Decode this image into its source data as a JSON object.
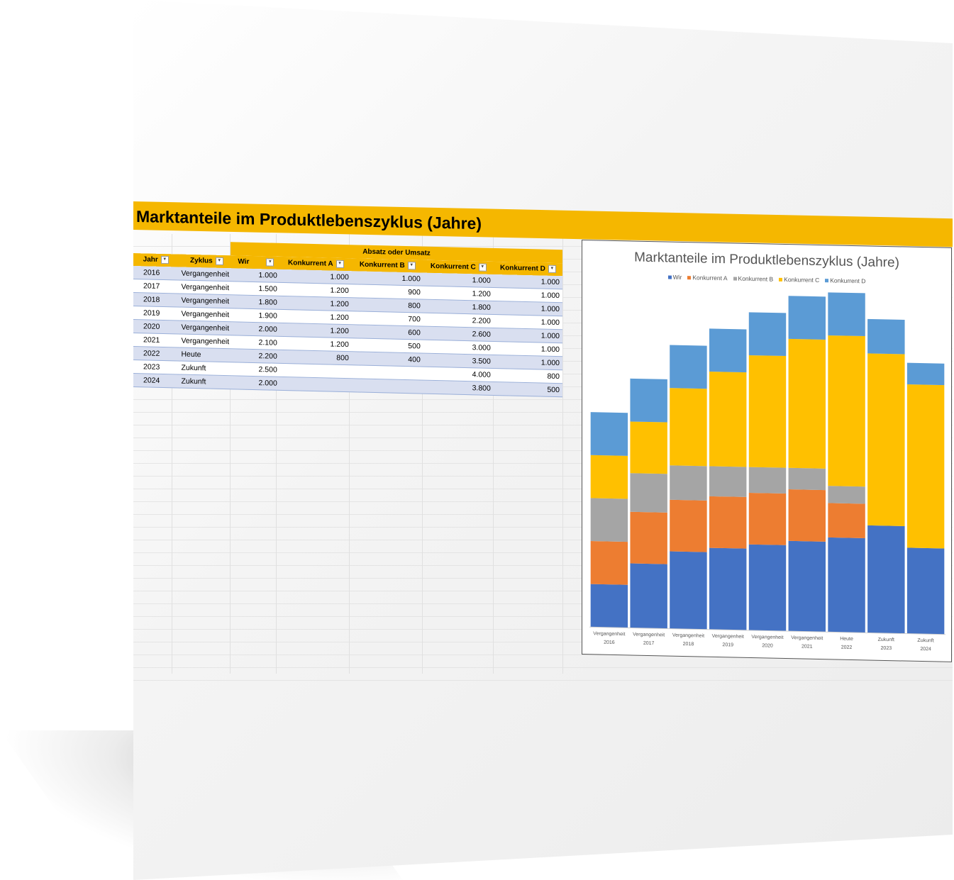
{
  "title": "Marktanteile im Produktlebenszyklus (Jahre)",
  "table": {
    "group_header": "Absatz oder Umsatz",
    "headers": [
      "Jahr",
      "Zyklus",
      "Wir",
      "Konkurrent A",
      "Konkurrent B",
      "Konkurrent C",
      "Konkurrent D"
    ],
    "rows": [
      [
        "2016",
        "Vergangenheit",
        "1.000",
        "1.000",
        "1.000",
        "1.000",
        "1.000"
      ],
      [
        "2017",
        "Vergangenheit",
        "1.500",
        "1.200",
        "900",
        "1.200",
        "1.000"
      ],
      [
        "2018",
        "Vergangenheit",
        "1.800",
        "1.200",
        "800",
        "1.800",
        "1.000"
      ],
      [
        "2019",
        "Vergangenheit",
        "1.900",
        "1.200",
        "700",
        "2.200",
        "1.000"
      ],
      [
        "2020",
        "Vergangenheit",
        "2.000",
        "1.200",
        "600",
        "2.600",
        "1.000"
      ],
      [
        "2021",
        "Vergangenheit",
        "2.100",
        "1.200",
        "500",
        "3.000",
        "1.000"
      ],
      [
        "2022",
        "Heute",
        "2.200",
        "800",
        "400",
        "3.500",
        "1.000"
      ],
      [
        "2023",
        "Zukunft",
        "2.500",
        "",
        "",
        "4.000",
        "800"
      ],
      [
        "2024",
        "Zukunft",
        "2.000",
        "",
        "",
        "3.800",
        "500"
      ]
    ]
  },
  "chart_data": {
    "type": "bar",
    "stacked": true,
    "title": "Marktanteile im Produktlebenszyklus (Jahre)",
    "categories": [
      [
        "Vergangenheit",
        "2016"
      ],
      [
        "Vergangenheit",
        "2017"
      ],
      [
        "Vergangenheit",
        "2018"
      ],
      [
        "Vergangenheit",
        "2019"
      ],
      [
        "Vergangenheit",
        "2020"
      ],
      [
        "Vergangenheit",
        "2021"
      ],
      [
        "Heute",
        "2022"
      ],
      [
        "Zukunft",
        "2023"
      ],
      [
        "Zukunft",
        "2024"
      ]
    ],
    "series": [
      {
        "name": "Wir",
        "color": "#4472c4",
        "values": [
          1000,
          1500,
          1800,
          1900,
          2000,
          2100,
          2200,
          2500,
          2000
        ]
      },
      {
        "name": "Konkurrent A",
        "color": "#ed7d31",
        "values": [
          1000,
          1200,
          1200,
          1200,
          1200,
          1200,
          800,
          0,
          0
        ]
      },
      {
        "name": "Konkurrent B",
        "color": "#a5a5a5",
        "values": [
          1000,
          900,
          800,
          700,
          600,
          500,
          400,
          0,
          0
        ]
      },
      {
        "name": "Konkurrent C",
        "color": "#ffc000",
        "values": [
          1000,
          1200,
          1800,
          2200,
          2600,
          3000,
          3500,
          4000,
          3800
        ]
      },
      {
        "name": "Konkurrent D",
        "color": "#5b9bd5",
        "values": [
          1000,
          1000,
          1000,
          1000,
          1000,
          1000,
          1000,
          800,
          500
        ]
      }
    ],
    "ylim": [
      0,
      8000
    ],
    "legend_position": "top",
    "grid": false
  }
}
